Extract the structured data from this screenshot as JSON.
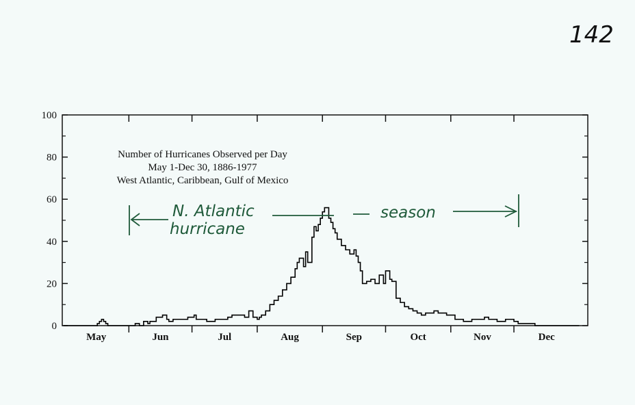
{
  "page_number": "142",
  "annotation": {
    "line1": "N. Atlantic",
    "line2": "hurricane",
    "season": "season",
    "color": "#1f5a3a"
  },
  "chart_data": {
    "type": "line",
    "title_lines": [
      "Number of Hurricanes Observed per Day",
      "May 1-Dec 30, 1886-1977",
      "West Atlantic, Caribbean, Gulf of Mexico"
    ],
    "xlabel": "",
    "ylabel": "",
    "x_units": "day of year (May 1 = 0)",
    "xlim": [
      0,
      245
    ],
    "ylim": [
      0,
      100
    ],
    "yticks": [
      0,
      20,
      40,
      60,
      80,
      100
    ],
    "month_labels": [
      "May",
      "Jun",
      "Jul",
      "Aug",
      "Sep",
      "Oct",
      "Nov",
      "Dec"
    ],
    "month_starts": [
      0,
      31,
      61,
      92,
      123,
      153,
      184,
      214
    ],
    "grid": false,
    "series": [
      {
        "color": "#000000",
        "x": [
          0,
          15,
          16,
          17,
          18,
          19,
          20,
          21,
          22,
          23,
          24,
          30,
          34,
          36,
          38,
          40,
          41,
          44,
          47,
          49,
          50,
          52,
          55,
          57,
          59,
          62,
          63,
          65,
          66,
          68,
          70,
          72,
          74,
          78,
          80,
          84,
          86,
          88,
          90,
          92,
          93,
          94,
          96,
          98,
          100,
          102,
          104,
          106,
          108,
          110,
          111,
          112,
          114,
          115,
          116,
          118,
          119,
          120,
          121,
          122,
          123,
          124,
          126,
          127,
          128,
          129,
          130,
          132,
          134,
          136,
          138,
          139,
          140,
          141,
          142,
          144,
          146,
          148,
          150,
          152,
          153,
          154,
          155,
          156,
          158,
          160,
          162,
          164,
          166,
          168,
          170,
          172,
          176,
          178,
          182,
          186,
          190,
          194,
          198,
          200,
          202,
          206,
          210,
          214,
          216,
          220,
          224,
          245
        ],
        "y": [
          0,
          0,
          1,
          2,
          3,
          2,
          1,
          0,
          0,
          0,
          0,
          0,
          1,
          0,
          2,
          1,
          2,
          4,
          5,
          3,
          2,
          3,
          3,
          3,
          4,
          5,
          3,
          3,
          3,
          2,
          2,
          3,
          3,
          4,
          5,
          5,
          4,
          7,
          4,
          3,
          4,
          5,
          7,
          10,
          12,
          14,
          17,
          20,
          23,
          27,
          30,
          32,
          28,
          35,
          30,
          42,
          47,
          45,
          48,
          51,
          54,
          56,
          51,
          49,
          46,
          44,
          41,
          38,
          36,
          34,
          36,
          33,
          30,
          26,
          20,
          21,
          22,
          20,
          24,
          20,
          26,
          26,
          22,
          21,
          13,
          11,
          9,
          8,
          7,
          6,
          5,
          6,
          7,
          6,
          5,
          3,
          2,
          3,
          3,
          4,
          3,
          2,
          3,
          2,
          1,
          1,
          0,
          0
        ]
      }
    ]
  }
}
